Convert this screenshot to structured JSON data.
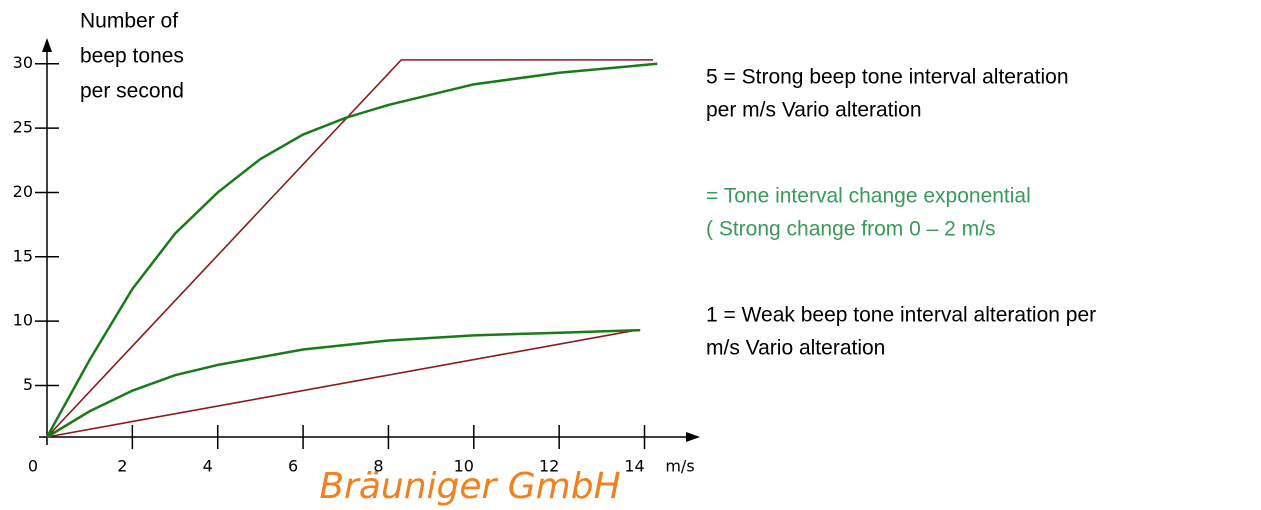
{
  "chart_data": {
    "type": "line",
    "ylabel": [
      "Number of",
      "beep tones",
      "per second"
    ],
    "xlabel": "m/s",
    "origin_label": "0",
    "xlim": [
      0,
      15.3
    ],
    "ylim": [
      1,
      32
    ],
    "xticks": [
      2,
      4,
      6,
      8,
      10,
      12,
      14
    ],
    "yticks": [
      5,
      10,
      15,
      20,
      25,
      30
    ],
    "series": [
      {
        "color": "#8b1a1a",
        "x": [
          0,
          8.3,
          14.2
        ],
        "values": [
          1,
          30.3,
          30.3
        ]
      },
      {
        "color": "#1a7a1a",
        "x": [
          0,
          1,
          2,
          3,
          4,
          5,
          6,
          7,
          8,
          10,
          12,
          14.3
        ],
        "values": [
          1,
          7,
          12.5,
          16.8,
          20,
          22.6,
          24.5,
          25.8,
          26.8,
          28.4,
          29.3,
          30
        ]
      },
      {
        "color": "#8b1a1a",
        "x": [
          0,
          13.8
        ],
        "values": [
          1,
          9.3
        ]
      },
      {
        "color": "#1a7a1a",
        "x": [
          0,
          1,
          2,
          3,
          4,
          6,
          8,
          10,
          12,
          13.9
        ],
        "values": [
          1,
          3,
          4.6,
          5.8,
          6.6,
          7.8,
          8.5,
          8.9,
          9.1,
          9.3
        ]
      }
    ],
    "annotations": [
      {
        "color": "#000000",
        "lines": [
          "5 = Strong beep tone interval alteration",
          "per m/s Vario alteration"
        ]
      },
      {
        "color": "#3a9a5a",
        "lines": [
          "= Tone interval change exponential",
          " ( Strong change from 0 – 2 m/s"
        ]
      },
      {
        "color": "#000000",
        "lines": [
          "1 = Weak beep tone interval alteration per",
          "m/s Vario alteration"
        ]
      }
    ],
    "watermark": "Bräuniger GmbH"
  }
}
